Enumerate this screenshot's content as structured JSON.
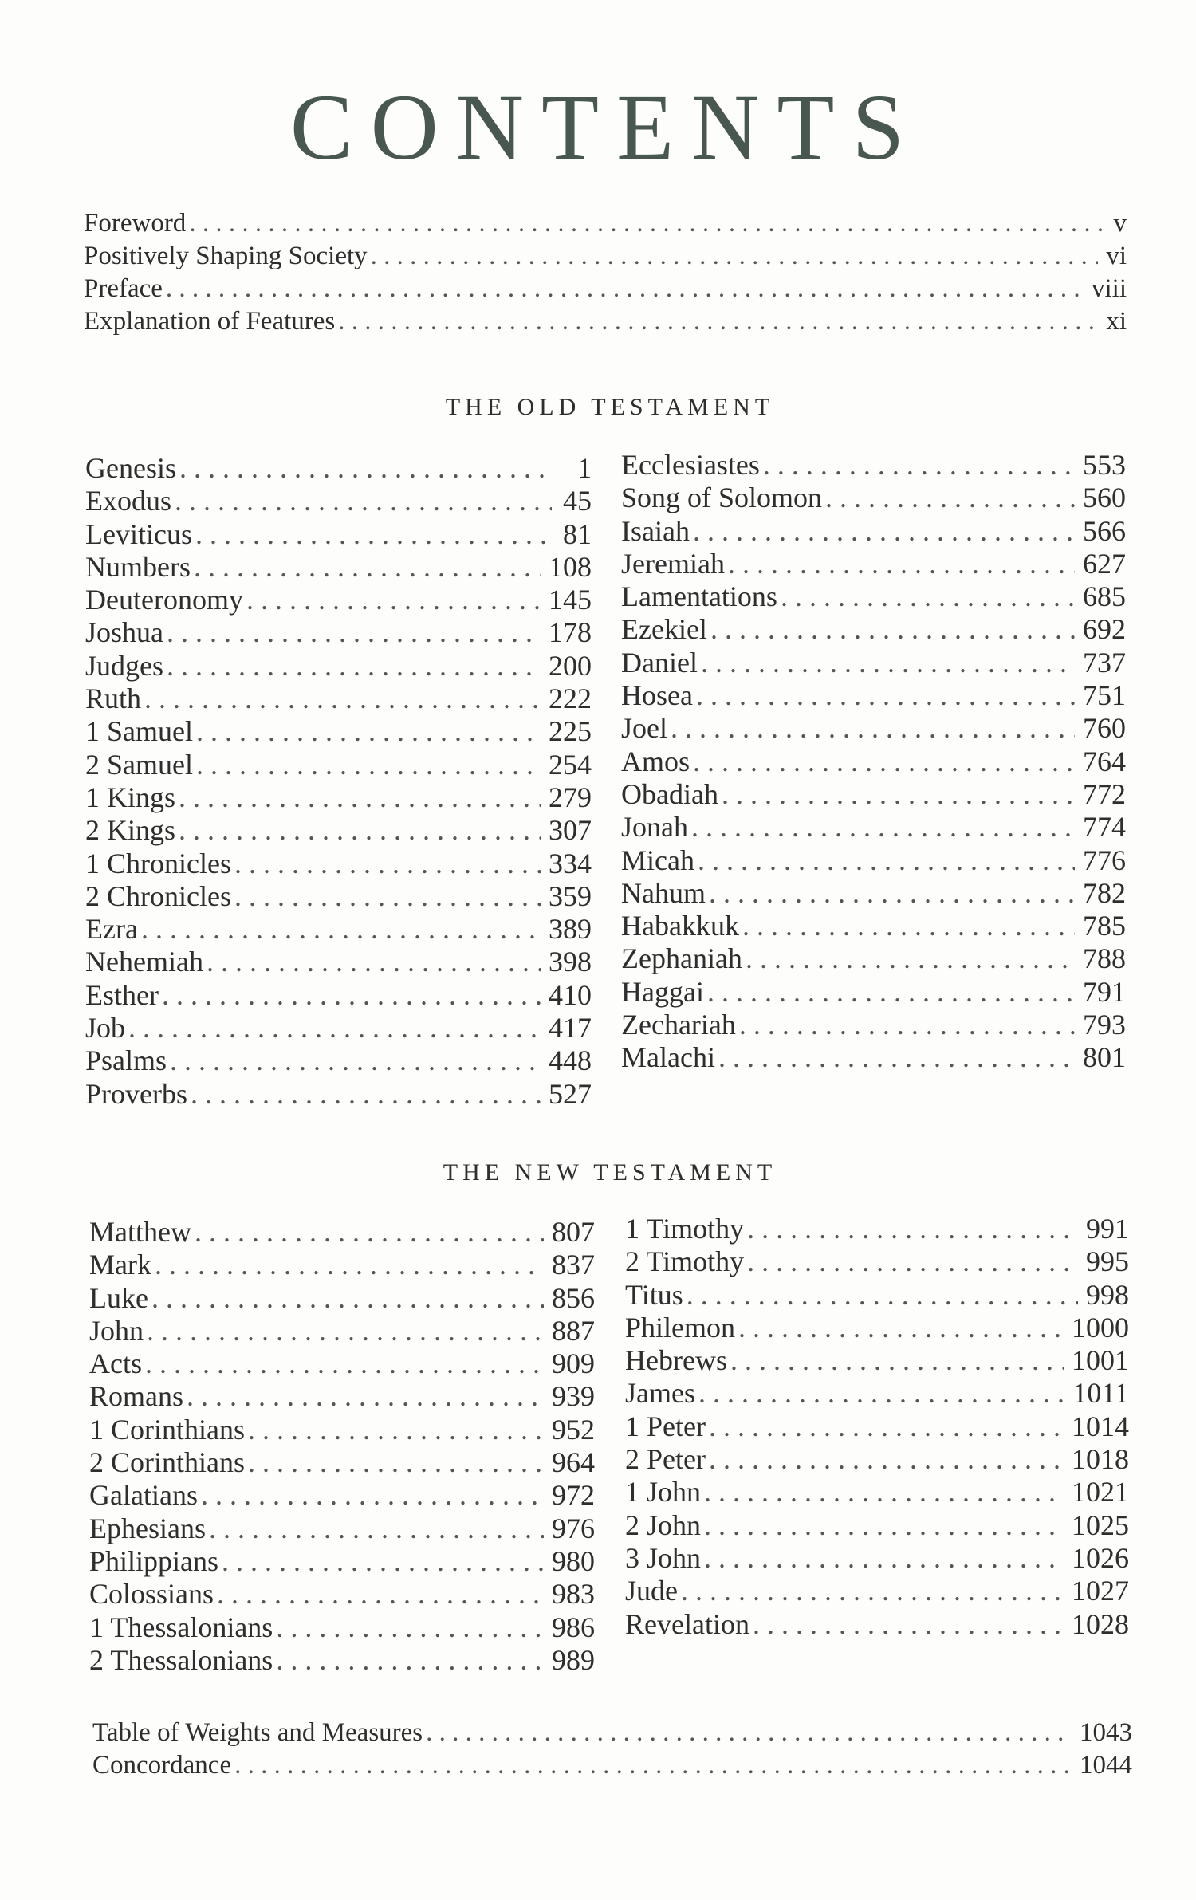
{
  "title": "CONTENTS",
  "front_matter": [
    {
      "name": "Foreword",
      "page": "v"
    },
    {
      "name": "Positively Shaping Society",
      "page": "vi"
    },
    {
      "name": "Preface",
      "page": "viii"
    },
    {
      "name": "Explanation of Features",
      "page": "xi"
    }
  ],
  "old_testament": {
    "heading": "THE OLD TESTAMENT",
    "left": [
      {
        "name": "Genesis",
        "page": "1"
      },
      {
        "name": "Exodus",
        "page": "45"
      },
      {
        "name": "Leviticus",
        "page": "81"
      },
      {
        "name": "Numbers",
        "page": "108"
      },
      {
        "name": "Deuteronomy",
        "page": "145"
      },
      {
        "name": "Joshua",
        "page": "178"
      },
      {
        "name": "Judges",
        "page": "200"
      },
      {
        "name": "Ruth",
        "page": "222"
      },
      {
        "name": "1 Samuel",
        "page": "225"
      },
      {
        "name": "2 Samuel",
        "page": "254"
      },
      {
        "name": "1 Kings",
        "page": "279"
      },
      {
        "name": "2 Kings",
        "page": "307"
      },
      {
        "name": "1 Chronicles",
        "page": "334"
      },
      {
        "name": "2 Chronicles",
        "page": "359"
      },
      {
        "name": "Ezra",
        "page": "389"
      },
      {
        "name": "Nehemiah",
        "page": "398"
      },
      {
        "name": "Esther",
        "page": "410"
      },
      {
        "name": "Job",
        "page": "417"
      },
      {
        "name": "Psalms",
        "page": "448"
      },
      {
        "name": "Proverbs",
        "page": "527"
      }
    ],
    "right": [
      {
        "name": "Ecclesiastes",
        "page": "553"
      },
      {
        "name": "Song of Solomon",
        "page": "560"
      },
      {
        "name": "Isaiah",
        "page": "566"
      },
      {
        "name": "Jeremiah",
        "page": "627"
      },
      {
        "name": "Lamentations",
        "page": "685"
      },
      {
        "name": "Ezekiel",
        "page": "692"
      },
      {
        "name": "Daniel",
        "page": "737"
      },
      {
        "name": "Hosea",
        "page": "751"
      },
      {
        "name": "Joel",
        "page": "760"
      },
      {
        "name": "Amos",
        "page": "764"
      },
      {
        "name": "Obadiah",
        "page": "772"
      },
      {
        "name": "Jonah",
        "page": "774"
      },
      {
        "name": "Micah",
        "page": "776"
      },
      {
        "name": "Nahum",
        "page": "782"
      },
      {
        "name": "Habakkuk",
        "page": "785"
      },
      {
        "name": "Zephaniah",
        "page": "788"
      },
      {
        "name": "Haggai",
        "page": "791"
      },
      {
        "name": "Zechariah",
        "page": "793"
      },
      {
        "name": "Malachi",
        "page": "801"
      }
    ]
  },
  "new_testament": {
    "heading": "THE NEW TESTAMENT",
    "left": [
      {
        "name": "Matthew",
        "page": "807"
      },
      {
        "name": "Mark",
        "page": "837"
      },
      {
        "name": "Luke",
        "page": "856"
      },
      {
        "name": "John",
        "page": "887"
      },
      {
        "name": "Acts",
        "page": "909"
      },
      {
        "name": "Romans",
        "page": "939"
      },
      {
        "name": "1 Corinthians",
        "page": "952"
      },
      {
        "name": "2 Corinthians",
        "page": "964"
      },
      {
        "name": "Galatians",
        "page": "972"
      },
      {
        "name": "Ephesians",
        "page": "976"
      },
      {
        "name": "Philippians",
        "page": "980"
      },
      {
        "name": "Colossians",
        "page": "983"
      },
      {
        "name": "1 Thessalonians",
        "page": "986"
      },
      {
        "name": "2 Thessalonians",
        "page": "989"
      }
    ],
    "right": [
      {
        "name": "1 Timothy",
        "page": "991"
      },
      {
        "name": "2 Timothy",
        "page": "995"
      },
      {
        "name": "Titus",
        "page": "998"
      },
      {
        "name": "Philemon",
        "page": "1000"
      },
      {
        "name": "Hebrews",
        "page": "1001"
      },
      {
        "name": "James",
        "page": "1011"
      },
      {
        "name": "1 Peter",
        "page": "1014"
      },
      {
        "name": "2 Peter",
        "page": "1018"
      },
      {
        "name": "1 John",
        "page": "1021"
      },
      {
        "name": "2 John",
        "page": "1025"
      },
      {
        "name": "3 John",
        "page": "1026"
      },
      {
        "name": "Jude",
        "page": "1027"
      },
      {
        "name": "Revelation",
        "page": "1028"
      }
    ]
  },
  "back_matter": [
    {
      "name": "Table of Weights and Measures",
      "page": "1043"
    },
    {
      "name": "Concordance",
      "page": "1044"
    }
  ],
  "colors": {
    "title": "#48574f",
    "text": "#2e2e2e"
  }
}
